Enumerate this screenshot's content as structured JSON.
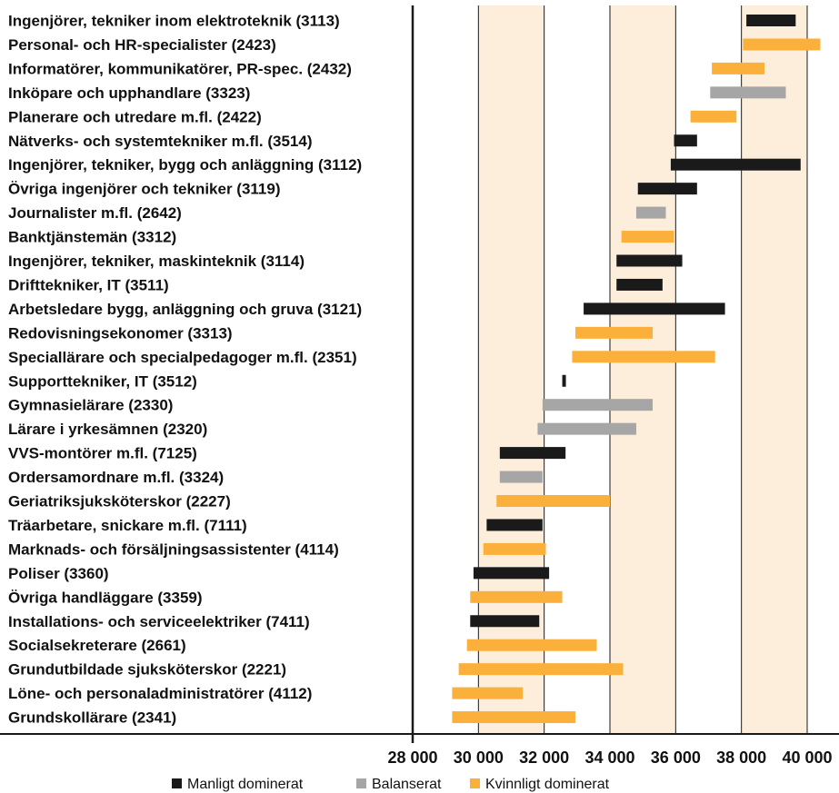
{
  "chart_data": {
    "type": "bar",
    "orientation": "horizontal",
    "subtype": "range",
    "xlim": [
      28000,
      40000
    ],
    "x_ticks": [
      28000,
      30000,
      32000,
      34000,
      36000,
      38000,
      40000
    ],
    "x_tick_labels": [
      "28 000",
      "30 000",
      "32 000",
      "34 000",
      "36 000",
      "38 000",
      "40 000"
    ],
    "shaded_bands": [
      [
        30000,
        32000
      ],
      [
        34000,
        36000
      ],
      [
        38000,
        40000
      ]
    ],
    "grid": true,
    "legend_placement": "bottom",
    "colors": {
      "male": "#1a1a1a",
      "balanced": "#a6a6a6",
      "female": "#fbb03b",
      "band": "#fdeedb"
    },
    "legend": [
      {
        "key": "male",
        "label": "Manligt dominerat"
      },
      {
        "key": "balanced",
        "label": "Balanserat"
      },
      {
        "key": "female",
        "label": "Kvinnligt dominerat"
      }
    ],
    "rows": [
      {
        "label": "Ingenjörer, tekniker inom elektroteknik (3113)",
        "group": "male",
        "low": 38150,
        "high": 39650
      },
      {
        "label": "Personal- och HR-specialister (2423)",
        "group": "female",
        "low": 38050,
        "high": 40400
      },
      {
        "label": "Informatörer, kommunikatörer, PR-spec. (2432)",
        "group": "female",
        "low": 37100,
        "high": 38700
      },
      {
        "label": "Inköpare och upphandlare (3323)",
        "group": "balanced",
        "low": 37050,
        "high": 39350
      },
      {
        "label": "Planerare och utredare m.fl. (2422)",
        "group": "female",
        "low": 36450,
        "high": 37850
      },
      {
        "label": "Nätverks- och systemtekniker m.fl. (3514)",
        "group": "male",
        "low": 35950,
        "high": 36650
      },
      {
        "label": "Ingenjörer, tekniker, bygg och anläggning (3112)",
        "group": "male",
        "low": 35850,
        "high": 39800
      },
      {
        "label": "Övriga ingenjörer och tekniker (3119)",
        "group": "male",
        "low": 34850,
        "high": 36650
      },
      {
        "label": "Journalister m.fl. (2642)",
        "group": "balanced",
        "low": 34800,
        "high": 35700
      },
      {
        "label": "Banktjänstemän (3312)",
        "group": "female",
        "low": 34350,
        "high": 35950
      },
      {
        "label": "Ingenjörer, tekniker, maskinteknik (3114)",
        "group": "male",
        "low": 34200,
        "high": 36200
      },
      {
        "label": "Drifttekniker, IT (3511)",
        "group": "male",
        "low": 34200,
        "high": 35600
      },
      {
        "label": "Arbetsledare bygg, anläggning och gruva (3121)",
        "group": "male",
        "low": 33200,
        "high": 37500
      },
      {
        "label": "Redovisningsekonomer (3313)",
        "group": "female",
        "low": 32950,
        "high": 35300
      },
      {
        "label": "Speciallärare och specialpedagoger m.fl. (2351)",
        "group": "female",
        "low": 32850,
        "high": 37200
      },
      {
        "label": "Supporttekniker, IT (3512)",
        "group": "male",
        "low": 32550,
        "high": 32650
      },
      {
        "label": "Gymnasielärare (2330)",
        "group": "balanced",
        "low": 31950,
        "high": 35300
      },
      {
        "label": "Lärare i yrkesämnen (2320)",
        "group": "balanced",
        "low": 31800,
        "high": 34800
      },
      {
        "label": "VVS-montörer m.fl. (7125)",
        "group": "male",
        "low": 30650,
        "high": 32650
      },
      {
        "label": "Ordersamordnare m.fl. (3324)",
        "group": "balanced",
        "low": 30650,
        "high": 31950
      },
      {
        "label": "Geriatriksjuksköterskor (2227)",
        "group": "female",
        "low": 30550,
        "high": 34000
      },
      {
        "label": "Träarbetare, snickare m.fl. (7111)",
        "group": "male",
        "low": 30250,
        "high": 31950
      },
      {
        "label": "Marknads- och försäljningsassistenter (4114)",
        "group": "female",
        "low": 30150,
        "high": 32050
      },
      {
        "label": "Poliser (3360)",
        "group": "male",
        "low": 29850,
        "high": 32150
      },
      {
        "label": "Övriga handläggare (3359)",
        "group": "female",
        "low": 29750,
        "high": 32550
      },
      {
        "label": "Installations- och serviceelektriker (7411)",
        "group": "male",
        "low": 29750,
        "high": 31850
      },
      {
        "label": "Socialsekreterare (2661)",
        "group": "female",
        "low": 29650,
        "high": 33600
      },
      {
        "label": "Grundutbildade sjuksköterskor (2221)",
        "group": "female",
        "low": 29400,
        "high": 34400
      },
      {
        "label": "Löne- och personaladministratörer (4112)",
        "group": "female",
        "low": 29200,
        "high": 31350
      },
      {
        "label": "Grundskollärare (2341)",
        "group": "female",
        "low": 29200,
        "high": 32950
      }
    ]
  }
}
